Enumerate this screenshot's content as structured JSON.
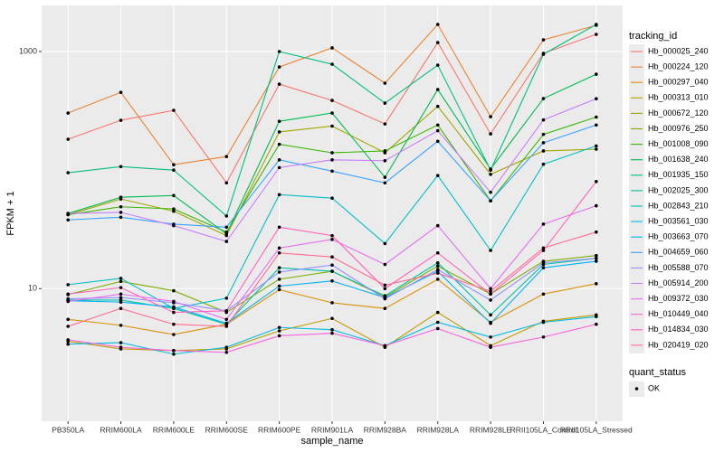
{
  "chart_data": {
    "type": "line",
    "x_label": "sample_name",
    "y_label": "FPKM + 1",
    "ylog": true,
    "grid": true,
    "ylim": [
      0.76,
      2450
    ],
    "yticks": [
      10,
      1000
    ],
    "point_color": "#000000",
    "background": "#EBEBEB",
    "categories": [
      "PB350LA",
      "RRIM600LA",
      "RRIM600LE",
      "RRIM600SE",
      "RRIM600PE",
      "RRIM901LA",
      "RRIM928BA",
      "RRIM928LA",
      "RRIM928LE",
      "RRII105LA_Control",
      "RRII105LA_Stressed"
    ],
    "legend_title": "tracking_id",
    "legend_position": "right",
    "series": [
      {
        "name": "Hb_000025_240",
        "color": "#F8766D",
        "values": [
          182,
          263,
          319,
          78,
          531,
          387,
          245,
          1191,
          202,
          966,
          1397
        ]
      },
      {
        "name": "Hb_000224_120",
        "color": "#EA8331",
        "values": [
          303,
          453,
          111,
          130,
          741,
          1074,
          541,
          1694,
          282,
          1256,
          1665
        ]
      },
      {
        "name": "Hb_000297_040",
        "color": "#D89000",
        "values": [
          5.5,
          4.9,
          4.1,
          5.0,
          9.8,
          7.6,
          6.8,
          12.0,
          5.2,
          9.0,
          11.0
        ]
      },
      {
        "name": "Hb_000313_010",
        "color": "#C09B00",
        "values": [
          3.6,
          3.1,
          3.0,
          3.1,
          4.4,
          5.6,
          3.2,
          6.3,
          3.3,
          5.3,
          6.0
        ]
      },
      {
        "name": "Hb_000672_120",
        "color": "#A3A500",
        "values": [
          42,
          57,
          45,
          28,
          210,
          235,
          140,
          345,
          92,
          145,
          150
        ]
      },
      {
        "name": "Hb_000976_250",
        "color": "#7CAE00",
        "values": [
          8.9,
          11.5,
          9.6,
          6.3,
          12,
          14,
          8.5,
          15.5,
          9.0,
          17,
          19
        ]
      },
      {
        "name": "Hb_001008_090",
        "color": "#39B600",
        "values": [
          42,
          49,
          47,
          30,
          165,
          140,
          145,
          240,
          55,
          200,
          280
        ]
      },
      {
        "name": "Hb_001638_240",
        "color": "#00BB4E",
        "values": [
          43,
          59,
          61,
          29,
          258,
          303,
          87,
          478,
          102,
          401,
          644
        ]
      },
      {
        "name": "Hb_001935_150",
        "color": "#00BF7D",
        "values": [
          95,
          107,
          100,
          41,
          1000,
          782,
          367,
          768,
          100,
          948,
          1694
        ]
      },
      {
        "name": "Hb_002025_300",
        "color": "#00C1A3",
        "values": [
          8,
          8,
          6.8,
          5,
          15,
          14,
          8.7,
          16.5,
          6,
          16,
          18
        ]
      },
      {
        "name": "Hb_002843_210",
        "color": "#00BFC4",
        "values": [
          10.8,
          12.2,
          6.8,
          8.3,
          62,
          58,
          24,
          90,
          21,
          112,
          160
        ]
      },
      {
        "name": "Hb_003561_030",
        "color": "#00BAE0",
        "values": [
          3.4,
          3.5,
          2.8,
          3.2,
          4.7,
          4.5,
          3.3,
          5.2,
          3.9,
          5.2,
          5.8
        ]
      },
      {
        "name": "Hb_003663_070",
        "color": "#00B0F6",
        "values": [
          7.9,
          7.7,
          7,
          5.1,
          10.5,
          11.6,
          8.4,
          14,
          5.1,
          15,
          17
        ]
      },
      {
        "name": "Hb_004659_060",
        "color": "#35A2FF",
        "values": [
          38,
          40,
          35,
          33,
          122,
          98,
          78,
          175,
          55,
          170,
          240
        ]
      },
      {
        "name": "Hb_005588_070",
        "color": "#9590FF",
        "values": [
          8.2,
          8.4,
          7.6,
          6.5,
          13.8,
          15.8,
          8.2,
          14.5,
          8,
          16.5,
          18
        ]
      },
      {
        "name": "Hb_005914_200",
        "color": "#C77CFF",
        "values": [
          43,
          44,
          34,
          25,
          105,
          122,
          120,
          215,
          65,
          265,
          400
        ]
      },
      {
        "name": "Hb_009372_030",
        "color": "#E76BF3",
        "values": [
          7.8,
          9,
          7.8,
          5.5,
          22,
          26,
          16,
          34,
          10,
          35,
          50
        ]
      },
      {
        "name": "Hb_010449_040",
        "color": "#FA62DB",
        "values": [
          3.7,
          3.2,
          3.0,
          2.9,
          4.0,
          4.2,
          3.3,
          4.6,
          3.2,
          3.9,
          5.0
        ]
      },
      {
        "name": "Hb_014834_030",
        "color": "#FF62BC",
        "values": [
          9,
          10.2,
          6.3,
          6.5,
          33,
          28,
          10,
          20,
          9,
          21,
          80
        ]
      },
      {
        "name": "Hb_020419_020",
        "color": "#FF6C91",
        "values": [
          4.8,
          6.8,
          5.0,
          4.8,
          20,
          18.5,
          10.7,
          13.5,
          9.5,
          22,
          30
        ]
      }
    ],
    "shape_legend": {
      "title": "quant_status",
      "levels": [
        "OK"
      ]
    }
  }
}
